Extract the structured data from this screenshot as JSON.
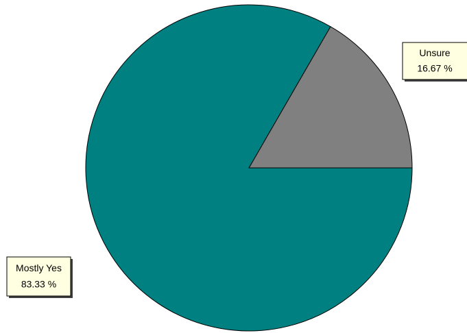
{
  "chart_data": {
    "type": "pie",
    "categories": [
      "Unsure",
      "Mostly Yes"
    ],
    "values": [
      16.67,
      83.33
    ],
    "value_labels": [
      "16.67 %",
      "83.33 %"
    ],
    "colors": [
      "#808080",
      "#008080"
    ]
  }
}
